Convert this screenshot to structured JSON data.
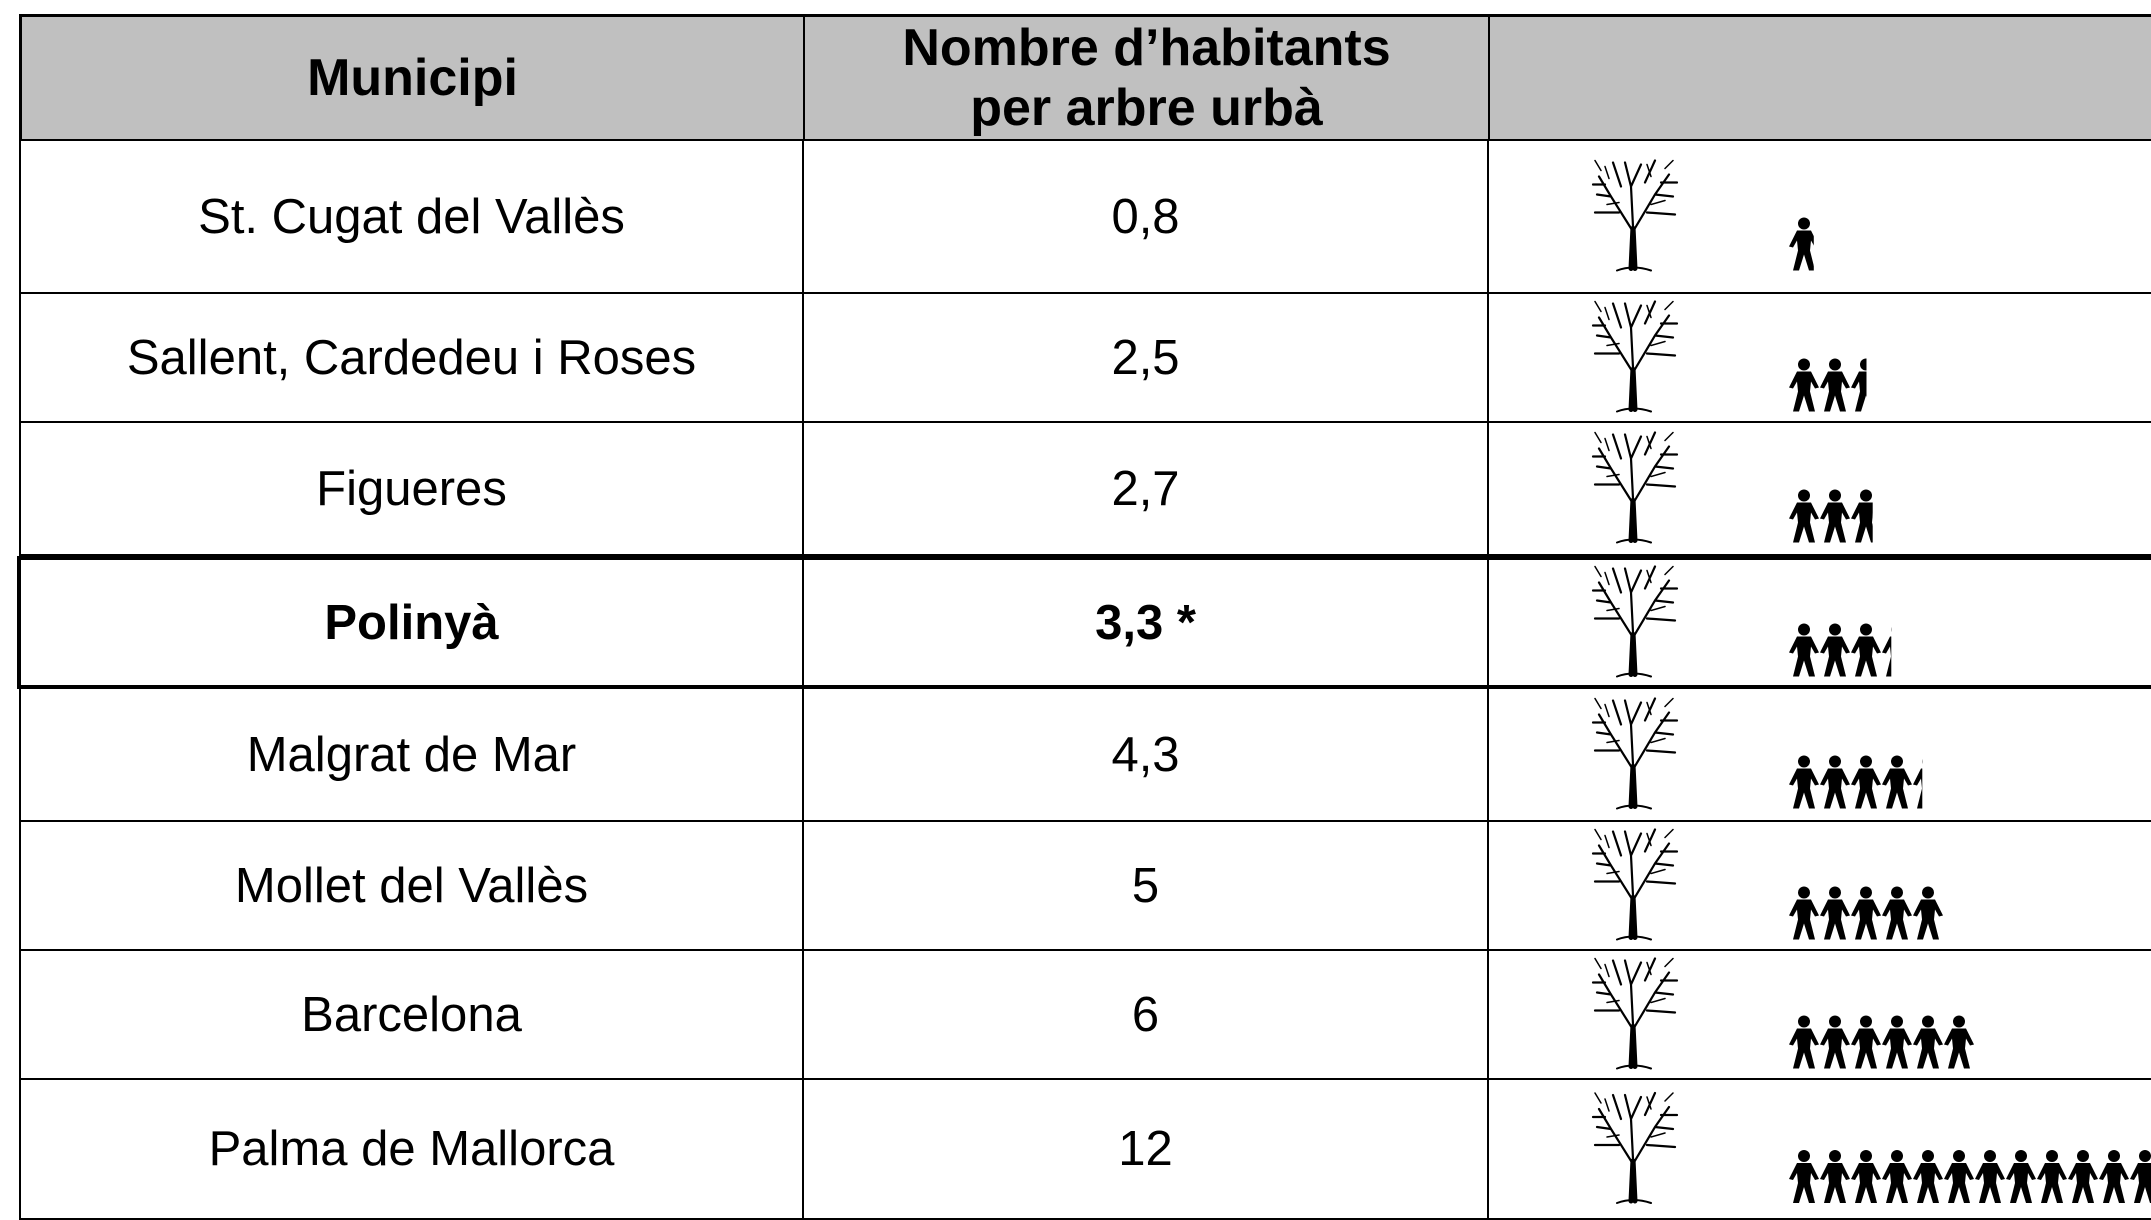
{
  "table": {
    "header": [
      "Municipi",
      "Nombre d’habitants per arbre urbà"
    ],
    "rows": [
      [
        "St. Cugat del Vallès",
        "0,8"
      ],
      [
        "Sallent, Cardedeu i Roses",
        "2,5"
      ],
      [
        "Figueres",
        "2,7"
      ],
      [
        "Polinyà",
        "3,3 *"
      ],
      [
        "Malgrat de Mar",
        "4,3"
      ],
      [
        "Mollet del Vallès",
        "5"
      ],
      [
        "Barcelona",
        "6"
      ],
      [
        "Palma de Mallorca",
        "12"
      ]
    ],
    "highlighted_row": 3
  }
}
